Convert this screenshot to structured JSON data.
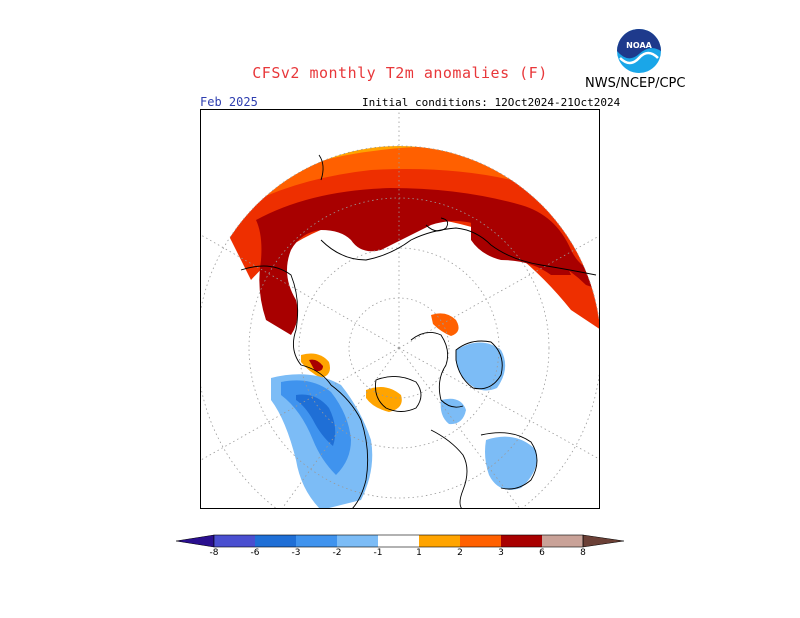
{
  "header": {
    "title": "CFSv2 monthly T2m anomalies (F)",
    "month": "Feb 2025",
    "initial_conditions": "Initial conditions: 12Oct2024-21Oct2024",
    "agency": "NWS/NCEP/CPC",
    "logo_text": "NOAA"
  },
  "map": {
    "projection": "north-polar-stereographic",
    "variable": "2m temperature anomaly",
    "units": "F",
    "land_outline_color": "#000000",
    "graticule": "dotted"
  },
  "colorbar": {
    "levels": [
      "-8",
      "-6",
      "-3",
      "-2",
      "-1",
      "1",
      "2",
      "3",
      "6",
      "8"
    ],
    "colors": {
      "below_-8": "#2a0f8f",
      "-8_-6": "#4a4fd0",
      "-6_-3": "#1f6fd6",
      "-3_-2": "#3f93ee",
      "-2_-1": "#7cbcf6",
      "-1_1": "#ffffff",
      "1_2": "#ffa400",
      "2_3": "#ff6000",
      "3_6": "#ee2f00",
      "6_8": "#a80000",
      "8_above": "#c9a298",
      "above_top": "#6b4036"
    }
  }
}
